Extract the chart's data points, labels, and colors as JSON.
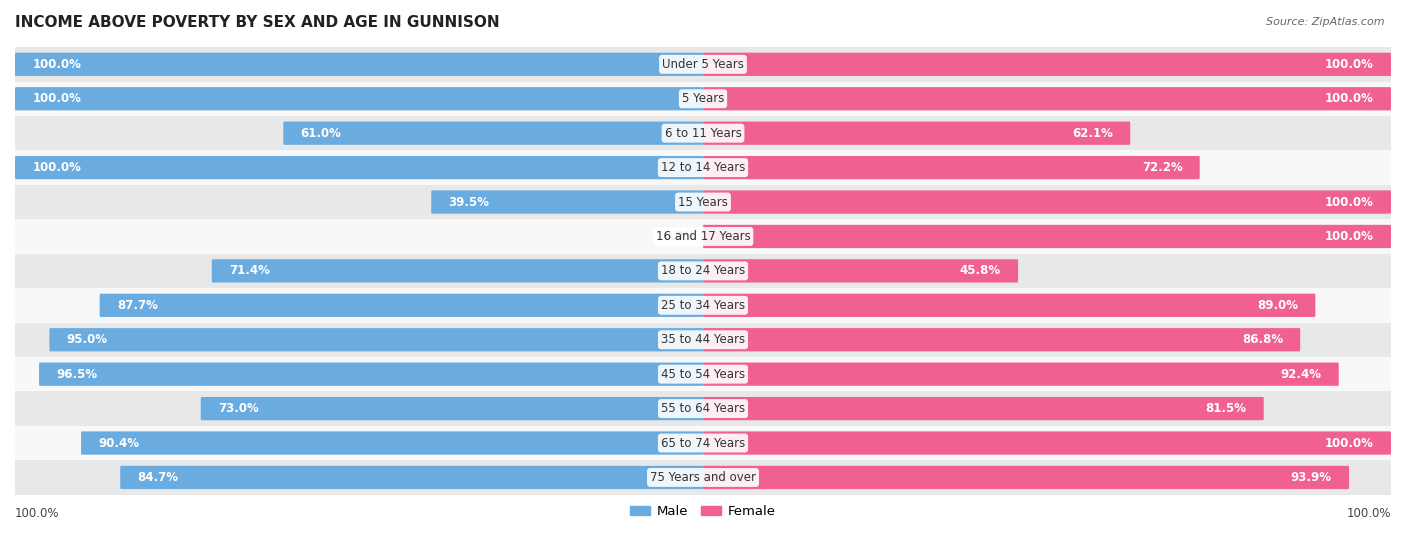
{
  "title": "INCOME ABOVE POVERTY BY SEX AND AGE IN GUNNISON",
  "source": "Source: ZipAtlas.com",
  "categories": [
    "Under 5 Years",
    "5 Years",
    "6 to 11 Years",
    "12 to 14 Years",
    "15 Years",
    "16 and 17 Years",
    "18 to 24 Years",
    "25 to 34 Years",
    "35 to 44 Years",
    "45 to 54 Years",
    "55 to 64 Years",
    "65 to 74 Years",
    "75 Years and over"
  ],
  "male_values": [
    100.0,
    100.0,
    61.0,
    100.0,
    39.5,
    0.0,
    71.4,
    87.7,
    95.0,
    96.5,
    73.0,
    90.4,
    84.7
  ],
  "female_values": [
    100.0,
    100.0,
    62.1,
    72.2,
    100.0,
    100.0,
    45.8,
    89.0,
    86.8,
    92.4,
    81.5,
    100.0,
    93.9
  ],
  "male_color": "#6aabe0",
  "female_color": "#f06090",
  "bg_color": "#f0f0f0",
  "row_colors": [
    "#e8e8e8",
    "#f8f8f8"
  ],
  "label_fontsize": 8.5,
  "title_fontsize": 11,
  "bar_height": 0.52,
  "legend_labels": [
    "Male",
    "Female"
  ]
}
